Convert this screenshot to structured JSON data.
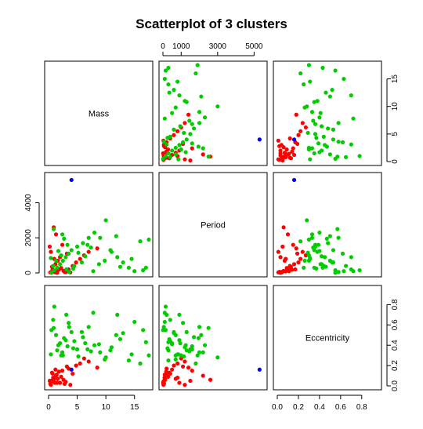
{
  "chart_data": {
    "type": "scatter",
    "title": "Scatterplot of 3 clusters",
    "variables": [
      "Mass",
      "Period",
      "Eccentricity"
    ],
    "ranges": {
      "Mass": [
        0,
        17.5
      ],
      "Period": [
        0,
        5500
      ],
      "Eccentricity": [
        0,
        0.95
      ]
    },
    "ticks": {
      "Mass": [
        0,
        5,
        10,
        15
      ],
      "Period": [
        0,
        2000,
        4000
      ],
      "Period_top": [
        0,
        1000,
        3000,
        5000
      ],
      "Eccentricity": [
        0.0,
        0.2,
        0.4,
        0.6,
        0.8
      ]
    },
    "tick_labels": {
      "Mass": [
        "0",
        "5",
        "10",
        "15"
      ],
      "Period": [
        "0",
        "2000",
        "4000"
      ],
      "Period_top": [
        "0",
        "1000",
        "3000",
        "5000"
      ],
      "Eccentricity": [
        "0.0",
        "0.2",
        "0.4",
        "0.6",
        "0.8"
      ]
    },
    "grid": false,
    "legend": "none",
    "colors": {
      "red": "#ff0000",
      "green": "#00cc00",
      "blue": "#0000ff"
    },
    "clusters": [
      {
        "color": "red",
        "points": [
          [
            0.3,
            30,
            0.02
          ],
          [
            0.5,
            60,
            0.05
          ],
          [
            0.8,
            90,
            0.08
          ],
          [
            1.1,
            40,
            0.03
          ],
          [
            1.4,
            100,
            0.11
          ],
          [
            1.8,
            180,
            0.14
          ],
          [
            2.2,
            280,
            0.09
          ],
          [
            2.6,
            120,
            0.06
          ],
          [
            3.0,
            50,
            0.04
          ],
          [
            3.5,
            200,
            0.17
          ],
          [
            4.2,
            400,
            0.12
          ],
          [
            4.8,
            600,
            0.2
          ],
          [
            5.5,
            800,
            0.22
          ],
          [
            6.2,
            1000,
            0.27
          ],
          [
            7.0,
            1200,
            0.24
          ],
          [
            8.5,
            1400,
            0.18
          ],
          [
            0.6,
            350,
            0.13
          ],
          [
            1.2,
            500,
            0.16
          ],
          [
            1.6,
            700,
            0.07
          ],
          [
            2.0,
            900,
            0.03
          ],
          [
            0.4,
            1200,
            0.01
          ],
          [
            0.9,
            2600,
            0.06
          ],
          [
            1.3,
            2200,
            0.1
          ],
          [
            2.4,
            1600,
            0.15
          ],
          [
            3.2,
            1100,
            0.19
          ],
          [
            0.2,
            1500,
            0.05
          ],
          [
            1.0,
            800,
            0.08
          ],
          [
            0.7,
            200,
            0.12
          ],
          [
            2.8,
            60,
            0.02
          ],
          [
            0.5,
            20,
            0.04
          ],
          [
            3.8,
            30,
            0.01
          ],
          [
            1.5,
            10,
            0.03
          ]
        ]
      },
      {
        "color": "green",
        "points": [
          [
            0.5,
            10,
            0.55
          ],
          [
            1.0,
            150,
            0.78
          ],
          [
            1.5,
            300,
            0.35
          ],
          [
            2.0,
            500,
            0.42
          ],
          [
            2.5,
            700,
            0.3
          ],
          [
            3.0,
            900,
            0.45
          ],
          [
            3.5,
            1100,
            0.62
          ],
          [
            4.0,
            1300,
            0.53
          ],
          [
            5.0,
            1500,
            0.36
          ],
          [
            6.0,
            1700,
            0.48
          ],
          [
            7.0,
            2000,
            0.58
          ],
          [
            8.0,
            2300,
            0.4
          ],
          [
            9.0,
            2000,
            0.33
          ],
          [
            10.0,
            3000,
            0.28
          ],
          [
            11.0,
            1200,
            0.38
          ],
          [
            12.0,
            900,
            0.7
          ],
          [
            13.0,
            600,
            0.52
          ],
          [
            14.0,
            300,
            0.25
          ],
          [
            15.0,
            100,
            0.63
          ],
          [
            16.0,
            1800,
            0.22
          ],
          [
            17.0,
            300,
            0.43
          ],
          [
            17.5,
            1900,
            0.3
          ],
          [
            0.8,
            400,
            0.65
          ],
          [
            1.3,
            700,
            0.5
          ],
          [
            2.2,
            1000,
            0.3
          ],
          [
            3.1,
            200,
            0.7
          ],
          [
            4.5,
            400,
            0.44
          ],
          [
            5.8,
            600,
            0.53
          ],
          [
            6.8,
            1600,
            0.36
          ],
          [
            7.8,
            100,
            0.72
          ],
          [
            8.8,
            500,
            0.41
          ],
          [
            9.8,
            700,
            0.26
          ],
          [
            10.8,
            1300,
            0.35
          ],
          [
            11.8,
            2100,
            0.5
          ],
          [
            0.4,
            850,
            0.31
          ],
          [
            1.7,
            1250,
            0.4
          ],
          [
            2.7,
            1950,
            0.47
          ],
          [
            3.6,
            50,
            0.58
          ],
          [
            4.3,
            250,
            0.37
          ],
          [
            5.2,
            1150,
            0.29
          ],
          [
            6.4,
            950,
            0.42
          ],
          [
            7.4,
            1450,
            0.34
          ],
          [
            0.9,
            2500,
            0.57
          ],
          [
            2.4,
            2200,
            0.33
          ],
          [
            3.3,
            1600,
            0.39
          ],
          [
            12.5,
            350,
            0.46
          ],
          [
            14.5,
            800,
            0.31
          ],
          [
            16.5,
            150,
            0.55
          ]
        ]
      },
      {
        "color": "blue",
        "points": [
          [
            4.0,
            5300,
            0.16
          ]
        ]
      }
    ]
  }
}
